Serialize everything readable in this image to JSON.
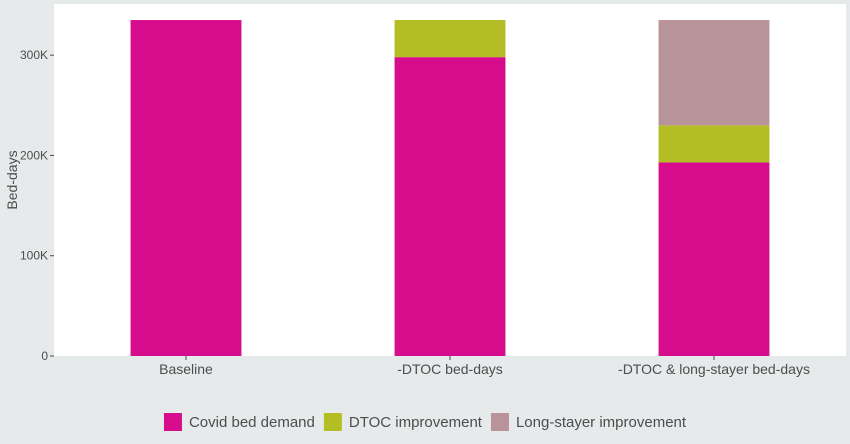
{
  "chart_data": {
    "type": "bar",
    "stacked": true,
    "categories": [
      "Baseline",
      "-DTOC bed-days",
      "-DTOC & long-stayer bed-days"
    ],
    "series": [
      {
        "name": "Covid bed demand",
        "color": "#d70c8c",
        "values": [
          335000,
          298000,
          193000
        ]
      },
      {
        "name": "DTOC improvement",
        "color": "#b2be23",
        "values": [
          0,
          37000,
          37000
        ]
      },
      {
        "name": "Long-stayer improvement",
        "color": "#b8939a",
        "values": [
          0,
          0,
          105000
        ]
      }
    ],
    "title": "",
    "xlabel": "",
    "ylabel": "Bed-days",
    "ylim": [
      0,
      351000
    ],
    "yticks": [
      0,
      100000,
      200000,
      300000
    ],
    "ytick_labels": [
      "0",
      "100K",
      "200K",
      "300K"
    ],
    "grid": false,
    "legend_position": "bottom"
  }
}
